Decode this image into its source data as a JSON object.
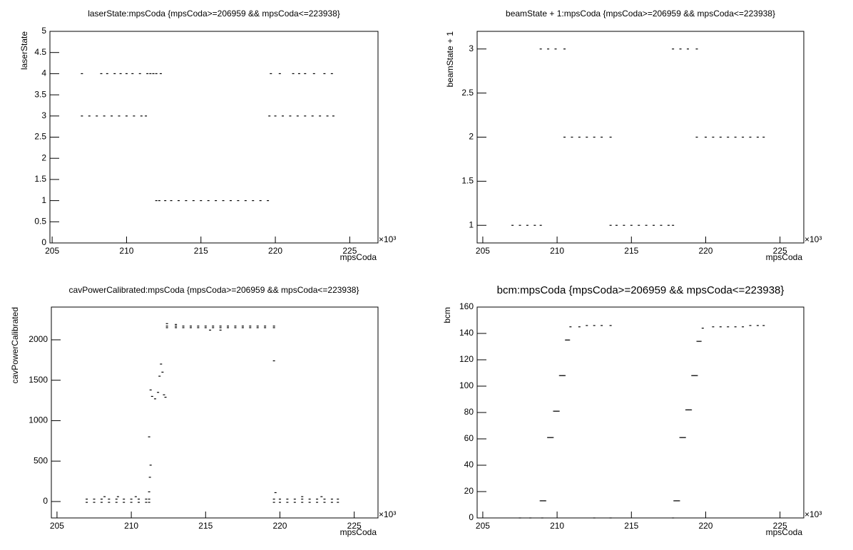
{
  "chart_data": [
    {
      "type": "scatter",
      "title": "laserState:mpsCoda {mpsCoda>=206959 && mpsCoda<=223938}",
      "x_label": "mpsCoda",
      "y_label": "laserState",
      "x_multiplier": "×10³",
      "xlim": [
        204.85,
        226.9
      ],
      "xticks": [
        205,
        210,
        215,
        220,
        225
      ],
      "ylim": [
        0,
        5
      ],
      "yticks": [
        0,
        0.5,
        1,
        1.5,
        2,
        2.5,
        3,
        3.5,
        4,
        4.5,
        5
      ],
      "color": "#000000",
      "x": [
        207.0,
        207.5,
        208.0,
        208.5,
        209.0,
        209.5,
        210.0,
        210.5,
        211.0,
        211.3,
        207.0,
        208.3,
        208.7,
        209.2,
        209.6,
        210.0,
        210.4,
        210.9,
        211.4,
        211.6,
        211.8,
        212.0,
        212.3,
        212.0,
        212.2,
        212.6,
        213.0,
        213.5,
        214.0,
        214.5,
        215.0,
        215.5,
        216.0,
        216.5,
        217.0,
        217.5,
        218.0,
        218.5,
        219.0,
        219.5,
        219.6,
        220.0,
        220.5,
        221.0,
        221.5,
        222.0,
        222.5,
        223.0,
        223.5,
        223.9,
        219.7,
        220.3,
        221.2,
        221.6,
        222.0,
        222.6,
        223.3,
        223.8
      ],
      "y": [
        3,
        3,
        3,
        3,
        3,
        3,
        3,
        3,
        3,
        3,
        4,
        4,
        4,
        4,
        4,
        4,
        4,
        4,
        4,
        4,
        4,
        4,
        4,
        1,
        1,
        1,
        1,
        1,
        1,
        1,
        1,
        1,
        1,
        1,
        1,
        1,
        1,
        1,
        1,
        1,
        3,
        3,
        3,
        3,
        3,
        3,
        3,
        3,
        3,
        3,
        4,
        4,
        4,
        4,
        4,
        4,
        4,
        4
      ]
    },
    {
      "type": "scatter",
      "title": "beamState + 1:mpsCoda {mpsCoda>=206959 && mpsCoda<=223938}",
      "x_label": "mpsCoda",
      "y_label": "beamState + 1",
      "x_multiplier": "×10³",
      "xlim": [
        204.62,
        226.6
      ],
      "xticks": [
        205,
        210,
        215,
        220,
        225
      ],
      "ylim": [
        0.8,
        3.2
      ],
      "yticks": [
        1,
        1.5,
        2,
        2.5,
        3
      ],
      "color": "#000000",
      "x": [
        207,
        207.5,
        208,
        208.5,
        208.9,
        208.9,
        209.4,
        209.9,
        210.5,
        210.5,
        211,
        211.5,
        212,
        212.5,
        213,
        213.6,
        213.6,
        214,
        214.5,
        215,
        215.5,
        216,
        216.5,
        217,
        217.5,
        217.8,
        217.8,
        218.3,
        218.8,
        219.4,
        219.4,
        220,
        220.5,
        221,
        221.5,
        222,
        222.5,
        223,
        223.5,
        223.9
      ],
      "y": [
        1,
        1,
        1,
        1,
        1,
        3,
        3,
        3,
        3,
        2,
        2,
        2,
        2,
        2,
        2,
        2,
        1,
        1,
        1,
        1,
        1,
        1,
        1,
        1,
        1,
        1,
        3,
        3,
        3,
        3,
        2,
        2,
        2,
        2,
        2,
        2,
        2,
        2,
        2,
        2
      ]
    },
    {
      "type": "scatter",
      "title": "cavPowerCalibrated:mpsCoda {mpsCoda>=206959 && mpsCoda<=223938}",
      "x_label": "mpsCoda",
      "y_label": "cavPowerCalibrated",
      "x_multiplier": "×10³",
      "xlim": [
        204.62,
        226.6
      ],
      "xticks": [
        205,
        210,
        215,
        220,
        225
      ],
      "ylim": [
        -203,
        2405
      ],
      "yticks": [
        0,
        500,
        1000,
        1500,
        2000
      ],
      "color": "#000000",
      "x": [
        207,
        207.5,
        208,
        208.5,
        209,
        209.5,
        210,
        210.5,
        211,
        211.2,
        207,
        207.5,
        208,
        208.5,
        209,
        209.5,
        210,
        210.5,
        211,
        211.2,
        208.2,
        209.1,
        210.3,
        211.2,
        211.25,
        211.3,
        211.2,
        211.3,
        211.4,
        211.6,
        211.8,
        211.9,
        212.0,
        212.1,
        212.2,
        212.3,
        212.4,
        213,
        213.5,
        214,
        214.5,
        215,
        215.5,
        216,
        216.5,
        217,
        217.5,
        218,
        218.5,
        219,
        219.6,
        212.4,
        213,
        213.5,
        214,
        214.5,
        215,
        215.5,
        216,
        216.5,
        217,
        217.5,
        218,
        218.5,
        219,
        219.6,
        212.4,
        213,
        215.3,
        216,
        219.6,
        219.6,
        220,
        220.5,
        221,
        221.5,
        222,
        222.5,
        223,
        223.5,
        223.9,
        219.6,
        220,
        220.5,
        221,
        221.5,
        222,
        222.5,
        223,
        223.5,
        223.9,
        219.7,
        221.5,
        222.8
      ],
      "y": [
        30,
        30,
        30,
        30,
        30,
        30,
        30,
        30,
        30,
        30,
        -10,
        -10,
        -10,
        -10,
        -10,
        -10,
        -10,
        -10,
        -10,
        -10,
        60,
        60,
        60,
        120,
        300,
        450,
        800,
        1380,
        1300,
        1270,
        1350,
        1550,
        1700,
        1600,
        1320,
        1290,
        2170,
        2170,
        2170,
        2170,
        2170,
        2170,
        2170,
        2170,
        2170,
        2170,
        2170,
        2170,
        2170,
        2170,
        2170,
        2150,
        2150,
        2150,
        2150,
        2150,
        2150,
        2150,
        2150,
        2150,
        2150,
        2150,
        2150,
        2150,
        2150,
        2150,
        2200,
        2190,
        2120,
        2120,
        1740,
        30,
        30,
        30,
        30,
        30,
        30,
        30,
        30,
        30,
        30,
        -10,
        -10,
        -10,
        -10,
        -10,
        -10,
        -10,
        -10,
        -10,
        -10,
        110,
        60,
        60
      ]
    },
    {
      "type": "scatter",
      "title": "bcm:mpsCoda {mpsCoda>=206959 && mpsCoda<=223938}",
      "x_label": "mpsCoda",
      "y_label": "bcm",
      "x_multiplier": "×10³",
      "xlim": [
        204.62,
        226.6
      ],
      "xticks": [
        205,
        210,
        215,
        220,
        225
      ],
      "ylim": [
        0,
        160
      ],
      "yticks": [
        0,
        20,
        40,
        60,
        80,
        100,
        120,
        140,
        160
      ],
      "color": "#000000",
      "x": [
        207.5,
        208.2,
        209.0,
        208.9,
        209.0,
        209.1,
        209.2,
        209.4,
        209.5,
        209.6,
        209.7,
        209.8,
        209.9,
        210.0,
        210.1,
        210.2,
        210.3,
        210.4,
        210.5,
        210.6,
        210.7,
        210.8,
        210.9,
        211.5,
        212,
        212.5,
        213,
        213.6,
        212.5,
        213.6,
        217.8,
        217.9,
        218.0,
        218.1,
        218.2,
        218.3,
        218.4,
        218.5,
        218.6,
        218.7,
        218.8,
        218.9,
        219.0,
        219.1,
        219.2,
        219.3,
        219.4,
        219.45,
        219.55,
        219.65,
        219.8,
        220.5,
        221,
        221.5,
        222,
        222.5,
        223,
        223.5,
        223.9
      ],
      "y": [
        0,
        0,
        0,
        13,
        13,
        13,
        13,
        61,
        61,
        61,
        61,
        81,
        81,
        81,
        81,
        108,
        108,
        108,
        108,
        135,
        135,
        135,
        145,
        145,
        146,
        146,
        146,
        146,
        0,
        0,
        0,
        13,
        13,
        13,
        13,
        61,
        61,
        61,
        61,
        82,
        82,
        82,
        82,
        108,
        108,
        108,
        108,
        134,
        134,
        134,
        144,
        145,
        145,
        145,
        145,
        145,
        146,
        146,
        146
      ]
    }
  ]
}
